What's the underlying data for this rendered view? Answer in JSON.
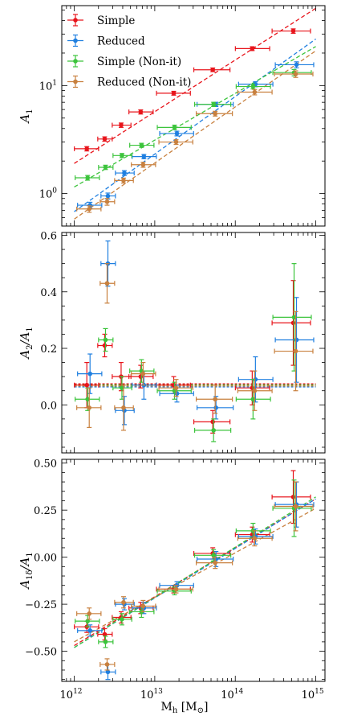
{
  "colors": {
    "simple": "#e8141b",
    "reduced": "#1f7fe0",
    "simple_nonit": "#3cc43c",
    "reduced_nonit": "#c8803e"
  },
  "shared": {
    "xlabel": "M_h [M_⊙]",
    "xscale": "log",
    "xlim": [
      700000000000.0,
      1300000000000000.0
    ],
    "x_ticks": [
      {
        "exp": "12"
      },
      {
        "exp": "13"
      },
      {
        "exp": "14"
      },
      {
        "exp": "15"
      }
    ],
    "x": [
      1500000000000.0,
      2500000000000.0,
      4000000000000.0,
      7000000000000.0,
      18000000000000.0,
      55000000000000.0,
      170000000000000.0,
      550000000000000.0
    ],
    "xerr_low": [
      450000000000.0,
      450000000000.0,
      900000000000.0,
      2000000000000.0,
      7000000000000.0,
      23000000000000.0,
      65000000000000.0,
      250000000000000.0
    ],
    "xerr_high": [
      600000000000.0,
      600000000000.0,
      1300000000000.0,
      3000000000000.0,
      11000000000000.0,
      35000000000000.0,
      110000000000000.0,
      350000000000000.0
    ]
  },
  "chart_data": [
    {
      "type": "scatter",
      "ylabel": "A_1",
      "yscale": "log",
      "ylim": [
        0.5,
        55
      ],
      "y_ticks": [
        {
          "base": "10",
          "exp": "0",
          "value": 1
        },
        {
          "base": "10",
          "exp": "1",
          "value": 10
        }
      ],
      "legend_position": "top-left",
      "series": [
        {
          "name": "Simple",
          "color_key": "simple",
          "y": [
            2.6,
            3.2,
            4.3,
            5.7,
            8.5,
            14,
            22,
            32
          ],
          "yerr": [
            0.12,
            0.15,
            0.2,
            0.25,
            0.35,
            0.55,
            0.9,
            1.5
          ],
          "fit": {
            "x": [
              1000000000000.0,
              1000000000000000.0
            ],
            "y": [
              1.9,
              52
            ]
          }
        },
        {
          "name": "Reduced",
          "color_key": "reduced",
          "y": [
            0.78,
            0.95,
            1.55,
            2.2,
            3.6,
            6.7,
            10.3,
            15.6
          ],
          "yerr": [
            0.05,
            0.06,
            0.08,
            0.1,
            0.18,
            0.3,
            0.55,
            1.0
          ],
          "fit": {
            "x": [
              1000000000000.0,
              1000000000000000.0
            ],
            "y": [
              0.68,
              27
            ]
          }
        },
        {
          "name": "Simple (Non-it)",
          "color_key": "simple_nonit",
          "y": [
            1.4,
            1.75,
            2.25,
            2.8,
            4.1,
            6.7,
            9.8,
            13.2
          ],
          "yerr": [
            0.07,
            0.08,
            0.1,
            0.12,
            0.2,
            0.3,
            0.5,
            0.9
          ],
          "fit": {
            "x": [
              1000000000000.0,
              1000000000000000.0
            ],
            "y": [
              1.15,
              23
            ]
          }
        },
        {
          "name": "Reduced (Non-it)",
          "color_key": "reduced_nonit",
          "y": [
            0.72,
            0.84,
            1.32,
            1.85,
            3.0,
            5.5,
            8.7,
            12.8
          ],
          "yerr": [
            0.05,
            0.06,
            0.07,
            0.1,
            0.15,
            0.28,
            0.5,
            0.9
          ],
          "fit": {
            "x": [
              1000000000000.0,
              1000000000000000.0
            ],
            "y": [
              0.58,
              21
            ]
          }
        }
      ]
    },
    {
      "type": "scatter",
      "ylabel": "A_2/A_1",
      "yscale": "linear",
      "ylim": [
        -0.17,
        0.61
      ],
      "y_ticks": [
        {
          "label": "0.0",
          "value": 0.0
        },
        {
          "label": "0.2",
          "value": 0.2
        },
        {
          "label": "0.4",
          "value": 0.4
        },
        {
          "label": "0.6",
          "value": 0.6
        }
      ],
      "series": [
        {
          "name": "Simple",
          "color_key": "simple",
          "y": [
            0.07,
            0.21,
            0.1,
            0.1,
            0.07,
            -0.06,
            0.06,
            0.29
          ],
          "yerr": [
            0.08,
            0.04,
            0.05,
            0.04,
            0.03,
            0.04,
            0.06,
            0.15
          ],
          "hline": 0.074
        },
        {
          "name": "Reduced",
          "color_key": "reduced",
          "y": [
            0.11,
            0.5,
            -0.02,
            0.07,
            0.04,
            -0.01,
            0.09,
            0.23
          ],
          "yerr": [
            0.07,
            0.08,
            0.05,
            0.05,
            0.03,
            0.04,
            0.08,
            0.15
          ],
          "hline": 0.064
        },
        {
          "name": "Simple (Non-it)",
          "color_key": "simple_nonit",
          "y": [
            0.02,
            0.23,
            0.06,
            0.12,
            0.05,
            -0.09,
            0.02,
            0.31
          ],
          "yerr": [
            0.04,
            0.04,
            0.04,
            0.04,
            0.03,
            0.04,
            0.07,
            0.19
          ],
          "hline": 0.07
        },
        {
          "name": "Reduced (Non-it)",
          "color_key": "reduced_nonit",
          "y": [
            -0.01,
            0.43,
            -0.01,
            0.11,
            0.06,
            0.02,
            0.05,
            0.19
          ],
          "yerr": [
            0.07,
            0.07,
            0.08,
            0.04,
            0.03,
            0.05,
            0.07,
            0.14
          ],
          "hline": 0.067
        }
      ]
    },
    {
      "type": "scatter",
      "ylabel": "A_{1δ}/A_1",
      "yscale": "linear",
      "ylim": [
        -0.66,
        0.52
      ],
      "y_ticks": [
        {
          "label": "−0.50",
          "value": -0.5
        },
        {
          "label": "−0.25",
          "value": -0.25
        },
        {
          "label": "0.00",
          "value": 0.0
        },
        {
          "label": "0.25",
          "value": 0.25
        },
        {
          "label": "0.50",
          "value": 0.5
        }
      ],
      "series": [
        {
          "name": "Simple",
          "color_key": "simple",
          "y": [
            -0.37,
            -0.41,
            -0.32,
            -0.27,
            -0.17,
            0.02,
            0.12,
            0.32
          ],
          "yerr": [
            0.03,
            0.03,
            0.03,
            0.03,
            0.02,
            0.03,
            0.04,
            0.14
          ],
          "fit": {
            "x": [
              1000000000000.0,
              1000000000000000.0
            ],
            "y": [
              -0.47,
              0.31
            ]
          }
        },
        {
          "name": "Reduced",
          "color_key": "reduced",
          "y": [
            -0.39,
            -0.61,
            -0.25,
            -0.27,
            -0.15,
            -0.01,
            0.11,
            0.28
          ],
          "yerr": [
            0.03,
            0.04,
            0.03,
            0.03,
            0.02,
            0.04,
            0.04,
            0.12
          ],
          "fit": {
            "x": [
              1000000000000.0,
              1000000000000000.0
            ],
            "y": [
              -0.48,
              0.31
            ]
          }
        },
        {
          "name": "Simple (Non-it)",
          "color_key": "simple_nonit",
          "y": [
            -0.34,
            -0.45,
            -0.33,
            -0.29,
            -0.18,
            0.01,
            0.14,
            0.26
          ],
          "yerr": [
            0.03,
            0.03,
            0.03,
            0.03,
            0.02,
            0.03,
            0.04,
            0.15
          ],
          "fit": {
            "x": [
              1000000000000.0,
              1000000000000000.0
            ],
            "y": [
              -0.48,
              0.32
            ]
          }
        },
        {
          "name": "Reduced (Non-it)",
          "color_key": "reduced_nonit",
          "y": [
            -0.3,
            -0.57,
            -0.24,
            -0.26,
            -0.17,
            -0.03,
            0.1,
            0.27
          ],
          "yerr": [
            0.03,
            0.03,
            0.03,
            0.03,
            0.02,
            0.03,
            0.04,
            0.13
          ],
          "fit": {
            "x": [
              1000000000000.0,
              1000000000000000.0
            ],
            "y": [
              -0.45,
              0.26
            ]
          }
        }
      ]
    }
  ]
}
